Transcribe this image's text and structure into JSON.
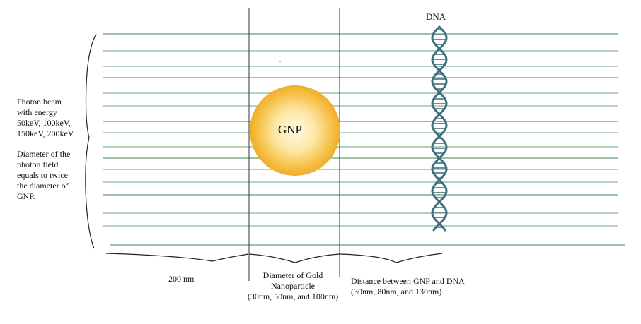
{
  "beam_label": {
    "line1": "Photon beam",
    "line2": "with energy",
    "line3": "50keV, 100keV,",
    "line4": "150keV, 200keV.",
    "line5": "Diameter of the",
    "line6": "photon field",
    "line7": "equals to twice",
    "line8": "the diameter of",
    "line9": "GNP."
  },
  "gnp_label": "GNP",
  "dna_label": "DNA",
  "dimensions": {
    "distance_to_gnp": "200 nm",
    "diameter_line1": "Diameter of Gold",
    "diameter_line2": "Nanoparticle",
    "diameter_line3": "(30nm, 50nm, and 100nm)",
    "distance_line1": "Distance between GNP and DNA",
    "distance_line2": "(30nm, 80nm, and 130nm)"
  },
  "colors": {
    "beam_lines": "#3a8a4a",
    "gnp_center": "#fff4c8",
    "gnp_edge": "#f0b030",
    "dna_strand": "#3e6f80",
    "dna_rung": "#6a8f9c",
    "divider": "#333333"
  }
}
